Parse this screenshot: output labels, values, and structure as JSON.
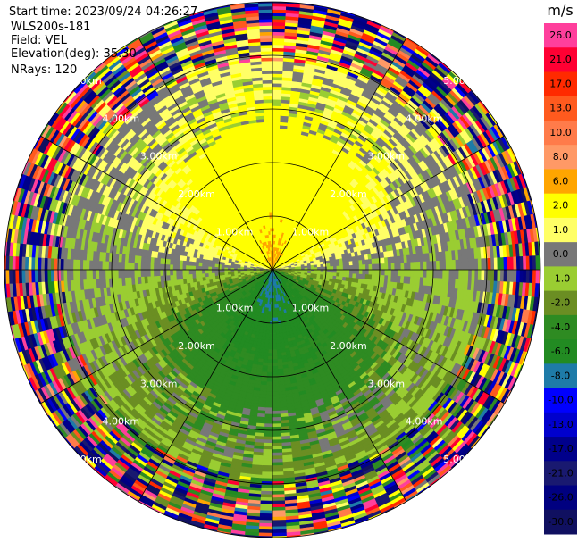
{
  "header": {
    "start_time": "Start time: 2023/09/24 04:26:27",
    "instrument": "WLS200s-181",
    "field": "Field: VEL",
    "elevation": "Elevation(deg): 35.30",
    "nrays": "NRays: 120"
  },
  "chart_data": {
    "type": "heatmap",
    "projection": "polar PPI",
    "field": "VEL",
    "units": "m/s",
    "n_rays": 120,
    "elevation_deg": 35.3,
    "range_km": [
      0,
      5.0
    ],
    "range_ring_labels": [
      "1.00km",
      "2.00km",
      "3.00km",
      "4.00km",
      "5.00km"
    ],
    "spoke_angles_deg": [
      0,
      30,
      60,
      90,
      120,
      150,
      180,
      210,
      240,
      270,
      300,
      330
    ],
    "velocity_structure": {
      "positive_lobe_direction": "north",
      "negative_lobe_direction": "south",
      "near_field_peak_positive_ms": 6.0,
      "near_field_peak_negative_ms": -6.0,
      "noise_onset_km": 3.9
    },
    "colorbar": {
      "label": "m/s",
      "levels": [
        26.0,
        21.0,
        17.0,
        13.0,
        10.0,
        8.0,
        6.0,
        2.0,
        1.0,
        0.0,
        -1.0,
        -2.0,
        -4.0,
        -6.0,
        -8.0,
        -10.0,
        -13.0,
        -17.0,
        -21.0,
        -26.0,
        -30.0
      ],
      "level_labels": [
        "26.0",
        "21.0",
        "17.0",
        "13.0",
        "10.0",
        "8.0",
        "6.0",
        "2.0",
        "1.0",
        "0.0",
        "-1.0",
        "-2.0",
        "-4.0",
        "-6.0",
        "-8.0",
        "-10.0",
        "-13.0",
        "-17.0",
        "-21.0",
        "-26.0",
        "-30.0"
      ],
      "colors": [
        "#ff3f9c",
        "#ff0033",
        "#ff2a00",
        "#ff5a1e",
        "#ff7b4a",
        "#ff9966",
        "#ffa500",
        "#ffff00",
        "#ffff66",
        "#787878",
        "#9acd32",
        "#6b8e23",
        "#2e8b22",
        "#228b22",
        "#1e7ba8",
        "#0000ff",
        "#0000cd",
        "#00008b",
        "#191970",
        "#000080",
        "#101060"
      ]
    },
    "legend_placement": "right"
  },
  "colors": {
    "background": "#ffffff",
    "grid": "#000000",
    "label": "#ffffff"
  }
}
